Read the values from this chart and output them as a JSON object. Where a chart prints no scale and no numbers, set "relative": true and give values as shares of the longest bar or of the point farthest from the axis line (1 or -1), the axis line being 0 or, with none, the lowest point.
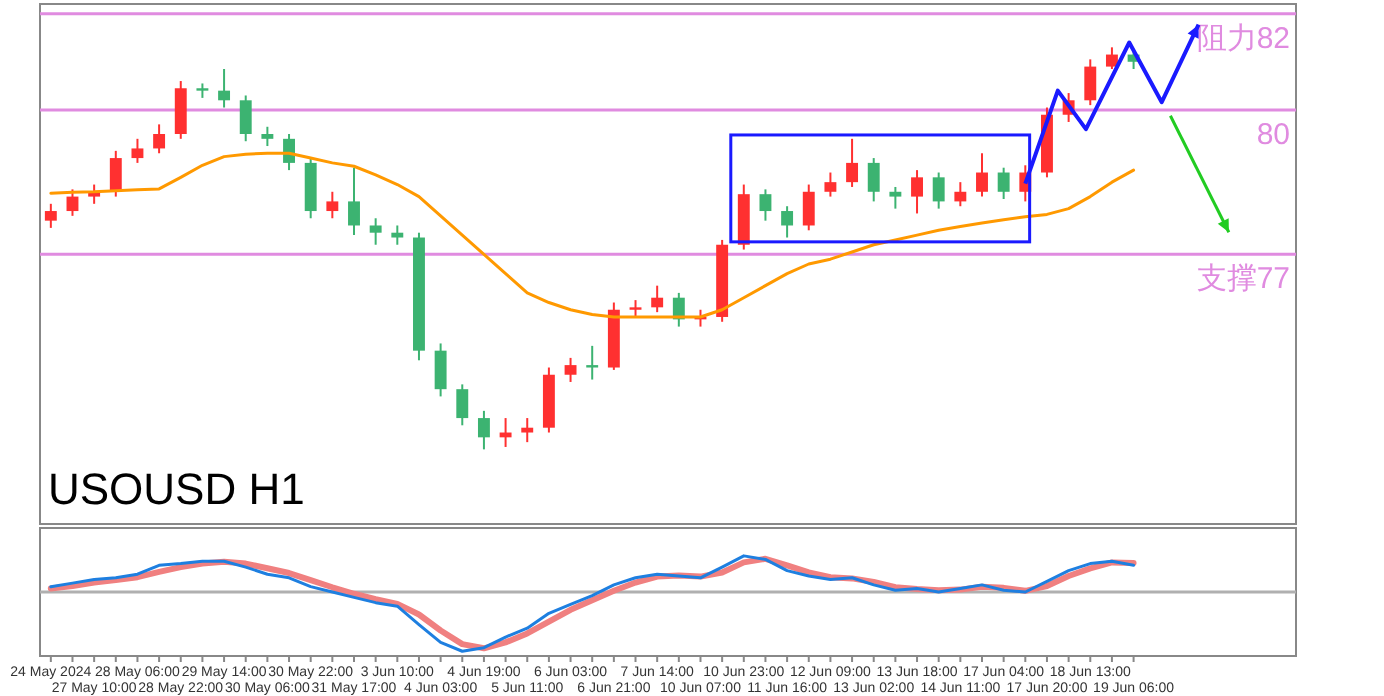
{
  "chart_data": [
    {
      "type": "candlestick",
      "title": "USOUSD H1",
      "tick_labels": false,
      "grid": false,
      "categories": [
        null,
        null,
        null,
        null,
        null,
        null,
        null,
        null,
        null,
        null,
        null,
        null,
        null,
        null,
        null,
        null,
        null,
        null,
        null,
        null,
        null,
        null,
        null,
        null,
        null,
        null,
        null,
        null,
        null,
        null,
        null,
        null,
        null,
        null,
        null,
        null,
        null,
        null,
        null,
        null,
        null,
        null,
        null,
        null,
        null,
        null,
        null,
        null,
        null,
        null,
        null
      ],
      "ohlc": [
        [
          77.7,
          78.05,
          77.55,
          77.9
        ],
        [
          77.9,
          78.35,
          77.8,
          78.2
        ],
        [
          78.2,
          78.45,
          78.05,
          78.3
        ],
        [
          78.3,
          79.15,
          78.2,
          79.0
        ],
        [
          79.0,
          79.4,
          78.9,
          79.2
        ],
        [
          79.2,
          79.7,
          79.1,
          79.5
        ],
        [
          79.5,
          80.6,
          79.4,
          80.45
        ],
        [
          80.45,
          80.55,
          80.25,
          80.4
        ],
        [
          80.4,
          80.85,
          80.05,
          80.2
        ],
        [
          80.2,
          80.3,
          79.35,
          79.5
        ],
        [
          79.5,
          79.65,
          79.25,
          79.4
        ],
        [
          79.4,
          79.5,
          78.75,
          78.9
        ],
        [
          78.9,
          79.0,
          77.75,
          77.9
        ],
        [
          77.9,
          78.3,
          77.75,
          78.1
        ],
        [
          78.1,
          78.8,
          77.4,
          77.6
        ],
        [
          77.6,
          77.75,
          77.2,
          77.45
        ],
        [
          77.45,
          77.6,
          77.2,
          77.35
        ],
        [
          77.35,
          77.45,
          74.8,
          75.0
        ],
        [
          75.0,
          75.15,
          74.05,
          74.2
        ],
        [
          74.2,
          74.3,
          73.45,
          73.6
        ],
        [
          73.6,
          73.75,
          72.95,
          73.2
        ],
        [
          73.2,
          73.6,
          73.0,
          73.3
        ],
        [
          73.3,
          73.6,
          73.1,
          73.4
        ],
        [
          73.4,
          74.65,
          73.3,
          74.5
        ],
        [
          74.5,
          74.85,
          74.35,
          74.7
        ],
        [
          74.7,
          75.1,
          74.4,
          74.65
        ],
        [
          74.65,
          76.0,
          74.6,
          75.85
        ],
        [
          75.85,
          76.05,
          75.7,
          75.9
        ],
        [
          75.9,
          76.35,
          75.8,
          76.1
        ],
        [
          76.1,
          76.2,
          75.5,
          75.65
        ],
        [
          75.65,
          75.85,
          75.5,
          75.7
        ],
        [
          75.7,
          77.3,
          75.6,
          77.2
        ],
        [
          77.2,
          78.45,
          77.1,
          78.25
        ],
        [
          78.25,
          78.35,
          77.7,
          77.9
        ],
        [
          77.9,
          78.0,
          77.35,
          77.6
        ],
        [
          77.6,
          78.45,
          77.5,
          78.3
        ],
        [
          78.3,
          78.7,
          78.2,
          78.5
        ],
        [
          78.5,
          79.4,
          78.4,
          78.9
        ],
        [
          78.9,
          79.0,
          78.1,
          78.3
        ],
        [
          78.3,
          78.4,
          77.95,
          78.2
        ],
        [
          78.2,
          78.75,
          77.85,
          78.6
        ],
        [
          78.6,
          78.7,
          77.95,
          78.1
        ],
        [
          78.1,
          78.5,
          78.0,
          78.3
        ],
        [
          78.3,
          79.1,
          78.2,
          78.7
        ],
        [
          78.7,
          78.8,
          78.15,
          78.3
        ],
        [
          78.3,
          78.85,
          78.1,
          78.7
        ],
        [
          78.7,
          80.05,
          78.6,
          79.9
        ],
        [
          79.9,
          80.35,
          79.75,
          80.2
        ],
        [
          80.2,
          81.05,
          80.1,
          80.9
        ],
        [
          80.9,
          81.3,
          80.85,
          81.15
        ],
        [
          81.15,
          81.25,
          80.85,
          81.0
        ]
      ],
      "colors": [
        "#ff3030",
        "#ff3030",
        "#ff3030",
        "#ff3030",
        "#ff3030",
        "#ff3030",
        "#ff3030",
        "#3cb371",
        "#3cb371",
        "#3cb371",
        "#3cb371",
        "#3cb371",
        "#3cb371",
        "#ff3030",
        "#3cb371",
        "#3cb371",
        "#3cb371",
        "#3cb371",
        "#3cb371",
        "#3cb371",
        "#3cb371",
        "#ff3030",
        "#ff3030",
        "#ff3030",
        "#ff3030",
        "#3cb371",
        "#ff3030",
        "#ff3030",
        "#ff3030",
        "#3cb371",
        "#ff3030",
        "#ff3030",
        "#ff3030",
        "#3cb371",
        "#3cb371",
        "#ff3030",
        "#ff3030",
        "#ff3030",
        "#3cb371",
        "#3cb371",
        "#ff3030",
        "#3cb371",
        "#ff3030",
        "#ff3030",
        "#3cb371",
        "#ff3030",
        "#ff3030",
        "#ff3030",
        "#ff3030",
        "#ff3030",
        "#3cb371"
      ],
      "series": [
        {
          "type": "line",
          "color": "#ff9900",
          "values": [
            78.27,
            78.29,
            78.3,
            78.32,
            78.34,
            78.36,
            78.6,
            78.85,
            79.03,
            79.08,
            79.1,
            79.1,
            79.0,
            78.9,
            78.83,
            78.65,
            78.45,
            78.2,
            77.8,
            77.4,
            77.0,
            76.6,
            76.2,
            76.0,
            75.85,
            75.75,
            75.7,
            75.7,
            75.7,
            75.7,
            75.7,
            75.85,
            76.1,
            76.35,
            76.6,
            76.8,
            76.9,
            77.05,
            77.2,
            77.3,
            77.4,
            77.5,
            77.58,
            77.65,
            77.72,
            77.78,
            77.83,
            77.95,
            78.2,
            78.5,
            78.75
          ]
        }
      ],
      "ylim": [
        71.4,
        82.2
      ],
      "ref_lines": [
        {
          "axis": "y",
          "value": 82,
          "label": "阻力82",
          "color": "#e08be0"
        },
        {
          "axis": "y",
          "value": 80,
          "label": "80",
          "color": "#e08be0"
        },
        {
          "axis": "y",
          "value": 77,
          "label": "支撑77",
          "color": "#e08be0"
        }
      ]
    },
    {
      "type": "line",
      "relative": true,
      "tick_labels": "x",
      "grid": false,
      "categories": [
        "24 May 2024",
        null,
        "27 May 10:00",
        null,
        "28 May 06:00",
        null,
        "28 May 22:00",
        null,
        "29 May 14:00",
        null,
        "30 May 06:00",
        null,
        "30 May 22:00",
        null,
        "31 May 17:00",
        null,
        "3 Jun 10:00",
        null,
        "4 Jun 03:00",
        null,
        "4 Jun 19:00",
        null,
        "5 Jun 11:00",
        null,
        "6 Jun 03:00",
        null,
        "6 Jun 21:00",
        null,
        "7 Jun 14:00",
        null,
        "10 Jun 07:00",
        null,
        "10 Jun 23:00",
        null,
        "11 Jun 16:00",
        null,
        "12 Jun 09:00",
        null,
        "13 Jun 02:00",
        null,
        "13 Jun 18:00",
        null,
        "14 Jun 11:00",
        null,
        "17 Jun 04:00",
        null,
        "17 Jun 20:00",
        null,
        "18 Jun 13:00",
        null,
        "19 Jun 06:00"
      ],
      "series": [
        {
          "color": "#f08080",
          "values": [
            0.06,
            0.1,
            0.16,
            0.2,
            0.25,
            0.34,
            0.42,
            0.48,
            0.51,
            0.48,
            0.4,
            0.32,
            0.2,
            0.08,
            -0.03,
            -0.12,
            -0.2,
            -0.38,
            -0.65,
            -0.88,
            -0.95,
            -0.85,
            -0.7,
            -0.5,
            -0.3,
            -0.14,
            0.02,
            0.16,
            0.26,
            0.28,
            0.26,
            0.33,
            0.5,
            0.56,
            0.45,
            0.33,
            0.25,
            0.23,
            0.17,
            0.08,
            0.05,
            0.03,
            0.04,
            0.09,
            0.07,
            0.02,
            0.1,
            0.27,
            0.4,
            0.5,
            0.49
          ]
        },
        {
          "color": "#1e7fe0",
          "values": [
            0.09,
            0.15,
            0.21,
            0.24,
            0.3,
            0.45,
            0.48,
            0.52,
            0.52,
            0.42,
            0.3,
            0.24,
            0.09,
            0,
            -0.09,
            -0.18,
            -0.24,
            -0.55,
            -0.85,
            -1,
            -0.94,
            -0.76,
            -0.61,
            -0.36,
            -0.21,
            -0.06,
            0.12,
            0.24,
            0.3,
            0.27,
            0.24,
            0.42,
            0.61,
            0.55,
            0.36,
            0.27,
            0.21,
            0.24,
            0.12,
            0.03,
            0.06,
            0,
            0.06,
            0.12,
            0.03,
            0,
            0.18,
            0.36,
            0.48,
            0.52,
            0.45
          ]
        }
      ],
      "ref_lines": [
        {
          "axis": "y",
          "value": 0,
          "color": "#b0b0b0"
        }
      ]
    }
  ]
}
